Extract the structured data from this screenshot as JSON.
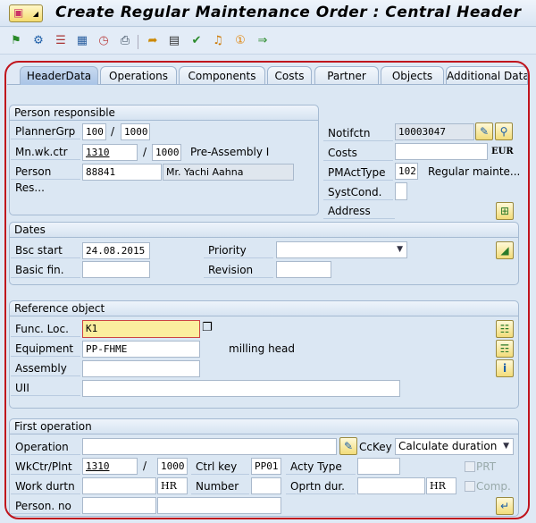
{
  "window": {
    "title": "Create Regular Maintenance Order : Central Header"
  },
  "toolbar": {
    "icons": [
      "flag-icon",
      "settings-icon",
      "list-icon",
      "calculator-icon",
      "schedule-icon",
      "print-icon",
      "transfer-icon",
      "document-icon",
      "approve-icon",
      "notification-icon",
      "info-number-icon",
      "forward-icon"
    ]
  },
  "tabs": [
    {
      "label": "HeaderData",
      "active": true
    },
    {
      "label": "Operations"
    },
    {
      "label": "Components"
    },
    {
      "label": "Costs"
    },
    {
      "label": "Partner"
    },
    {
      "label": "Objects"
    },
    {
      "label": "Additional Data"
    }
  ],
  "person": {
    "title": "Person responsible",
    "planner_label": "PlannerGrp",
    "planner": "100",
    "planner_plant": "1000",
    "wkctr_label": "Mn.wk.ctr",
    "wkctr": "1310",
    "wkctr_plant": "1000",
    "wkctr_desc": "Pre-Assembly I",
    "person_label": "Person Res...",
    "person": "88841",
    "person_name": "Mr. Yachi Aahna",
    "slash": "/"
  },
  "right": {
    "notif_label": "Notifctn",
    "notif": "10003047",
    "costs_label": "Costs",
    "costs": "",
    "currency": "EUR",
    "acttype_label": "PMActType",
    "acttype": "102",
    "acttype_desc": "Regular mainte...",
    "syst_label": "SystCond.",
    "syst": "",
    "address_label": "Address"
  },
  "dates": {
    "title": "Dates",
    "start_label": "Bsc start",
    "start": "24.08.2015",
    "fin_label": "Basic fin.",
    "fin": "",
    "priority_label": "Priority",
    "priority": "",
    "revision_label": "Revision",
    "revision": ""
  },
  "ref": {
    "title": "Reference object",
    "func_label": "Func. Loc.",
    "func": "K1",
    "equip_label": "Equipment",
    "equip": "PP-FHME",
    "equip_desc": "milling head",
    "assembly_label": "Assembly",
    "assembly": "",
    "uii_label": "UII",
    "uii": ""
  },
  "op": {
    "title": "First operation",
    "operation_label": "Operation",
    "operation": "",
    "cckey_label": "CcKey",
    "cckey": "Calculate duration",
    "wkctr_label": "WkCtr/Plnt",
    "wkctr": "1310",
    "plant": "1000",
    "ctrl_label": "Ctrl key",
    "ctrl": "PP01",
    "acty_label": "Acty Type",
    "acty": "",
    "prt_label": "PRT",
    "work_label": "Work durtn",
    "work": "",
    "work_unit": "HR",
    "number_label": "Number",
    "number": "",
    "oprtn_label": "Oprtn dur.",
    "oprtn": "",
    "oprtn_unit": "HR",
    "comp_label": "Comp.",
    "person_label": "Person. no",
    "person": "",
    "person_name": ""
  }
}
